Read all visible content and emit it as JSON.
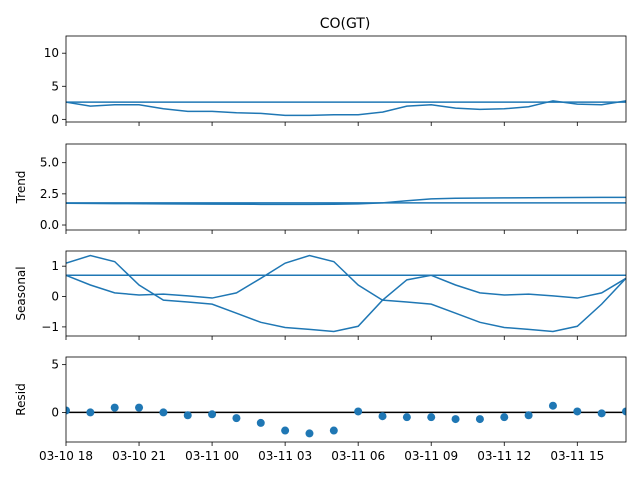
{
  "chart_data": {
    "type": "line",
    "title": "CO(GT)",
    "x_tick_labels": [
      "03-10 18",
      "03-10 21",
      "03-11 00",
      "03-11 03",
      "03-11 06",
      "03-11 09",
      "03-11 12",
      "03-11 15"
    ],
    "x_tick_hours": [
      0,
      3,
      6,
      9,
      12,
      15,
      18,
      21
    ],
    "x_range_hours": [
      0,
      23
    ],
    "panels": [
      {
        "key": "observed",
        "ylabel": "",
        "ylim": [
          -0.4,
          12.6
        ],
        "yticks": [
          0,
          5,
          10
        ],
        "series": [
          {
            "type": "line",
            "x": [
              0,
              1,
              2,
              3,
              4,
              5,
              6,
              7,
              8,
              9,
              10,
              11,
              12,
              13,
              14,
              15,
              16,
              17,
              18,
              19,
              20,
              21,
              22,
              23
            ],
            "y": [
              2.6,
              2.0,
              2.2,
              2.2,
              1.6,
              1.2,
              1.2,
              1.0,
              0.9,
              0.6,
              0.6,
              0.7,
              0.7,
              1.1,
              2.0,
              2.2,
              1.7,
              1.5,
              1.6,
              1.9,
              2.8,
              2.3,
              2.2,
              2.8
            ]
          },
          {
            "type": "line",
            "x": [
              0,
              23
            ],
            "y": [
              2.6,
              2.6
            ]
          }
        ]
      },
      {
        "key": "trend",
        "ylabel": "Trend",
        "ylim": [
          -0.4,
          6.5
        ],
        "yticks": [
          0.0,
          2.5,
          5.0
        ],
        "ytick_labels": [
          "0.0",
          "2.5",
          "5.0"
        ],
        "series": [
          {
            "type": "line",
            "x": [
              0,
              2,
              4,
              6,
              8,
              10,
              11,
              12,
              13,
              14,
              15,
              16,
              18,
              20,
              22,
              23
            ],
            "y": [
              1.75,
              1.72,
              1.7,
              1.68,
              1.66,
              1.66,
              1.67,
              1.7,
              1.78,
              1.95,
              2.1,
              2.15,
              2.18,
              2.2,
              2.22,
              2.22
            ]
          },
          {
            "type": "line",
            "x": [
              0,
              23
            ],
            "y": [
              1.78,
              1.78
            ]
          }
        ]
      },
      {
        "key": "seasonal",
        "ylabel": "Seasonal",
        "ylim": [
          -1.3,
          1.5
        ],
        "yticks": [
          -1,
          0,
          1
        ],
        "ytick_labels": [
          "−1",
          "0",
          "1"
        ],
        "series": [
          {
            "type": "line",
            "x": [
              0,
              1,
              2,
              3,
              4,
              5,
              6,
              7,
              8,
              9,
              10,
              11,
              12,
              13,
              14,
              15,
              16,
              17,
              18,
              19,
              20,
              21,
              22,
              23
            ],
            "y": [
              1.1,
              1.35,
              1.15,
              0.38,
              -0.12,
              -0.18,
              -0.25,
              -0.55,
              -0.85,
              -1.02,
              -1.08,
              -1.15,
              -0.98,
              -0.12,
              0.55,
              0.7,
              0.38,
              0.12,
              0.05,
              0.08,
              0.02,
              -0.05,
              0.12,
              0.6
            ]
          },
          {
            "type": "line",
            "x": [
              0,
              1,
              2,
              3,
              4,
              5,
              6,
              7,
              8,
              9,
              10,
              11,
              12,
              13,
              14,
              15,
              16,
              17,
              18,
              19,
              20,
              21,
              22,
              23
            ],
            "y": [
              0.7,
              0.38,
              0.12,
              0.05,
              0.08,
              0.02,
              -0.05,
              0.12,
              0.6,
              1.1,
              1.35,
              1.15,
              0.38,
              -0.12,
              -0.18,
              -0.25,
              -0.55,
              -0.85,
              -1.02,
              -1.08,
              -1.15,
              -0.98,
              -0.25,
              0.6
            ]
          },
          {
            "type": "line",
            "x": [
              0,
              23
            ],
            "y": [
              0.7,
              0.7
            ]
          }
        ]
      },
      {
        "key": "resid",
        "ylabel": "Resid",
        "ylim": [
          -3.1,
          5.8
        ],
        "yticks": [
          0,
          5
        ],
        "zero_line": true,
        "series": [
          {
            "type": "scatter",
            "x": [
              0,
              1,
              2,
              3,
              4,
              5,
              6,
              7,
              8,
              9,
              10,
              11,
              12,
              13,
              14,
              15,
              16,
              17,
              18,
              19,
              20,
              21,
              22,
              23
            ],
            "y": [
              0.2,
              0.0,
              0.5,
              0.5,
              0.0,
              -0.3,
              -0.2,
              -0.6,
              -1.1,
              -1.9,
              -2.2,
              -1.9,
              0.1,
              -0.4,
              -0.5,
              -0.5,
              -0.7,
              -0.7,
              -0.5,
              -0.3,
              0.7,
              0.1,
              -0.1,
              0.1
            ]
          }
        ]
      }
    ],
    "colors": {
      "series": "#1f77b4",
      "axis": "#000000",
      "zero_line": "#000000"
    }
  }
}
